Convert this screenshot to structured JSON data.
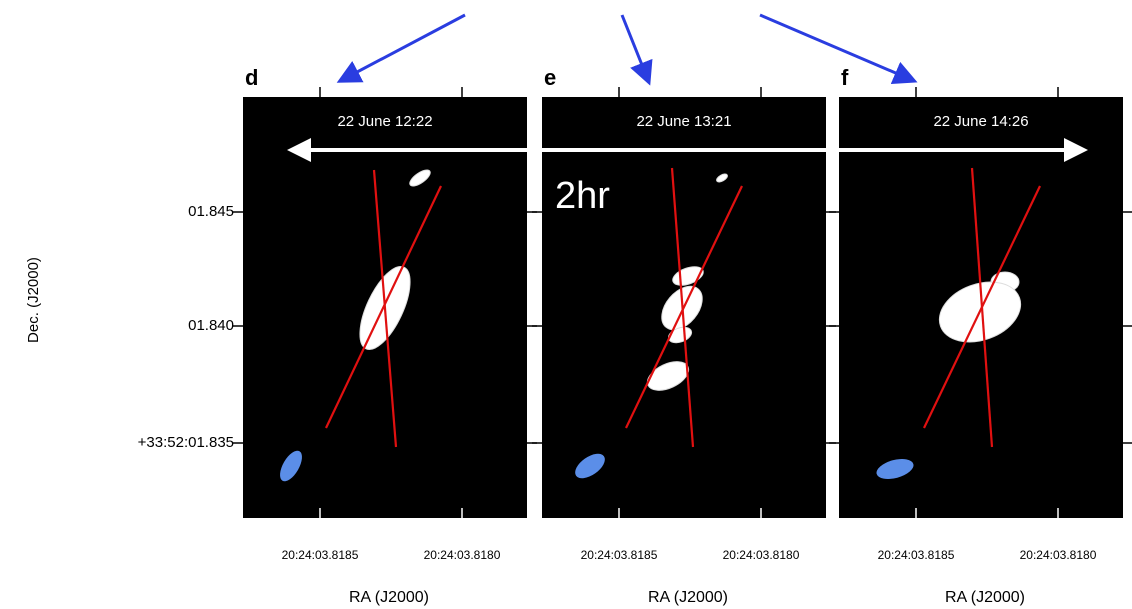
{
  "figure": {
    "panels": [
      {
        "letter": "d",
        "time": "22 June 12:22",
        "xticks": [
          "20:24:03.8185",
          "20:24:03.8180"
        ],
        "xlabel": "RA (J2000)"
      },
      {
        "letter": "e",
        "time": "22 June 13:21",
        "xticks": [
          "20:24:03.8185",
          "20:24:03.8180"
        ],
        "xlabel": "RA (J2000)"
      },
      {
        "letter": "f",
        "time": "22 June 14:26",
        "xticks": [
          "20:24:03.8185",
          "20:24:03.8180"
        ],
        "xlabel": "RA (J2000)"
      }
    ],
    "yticks": [
      "01.845",
      "01.840",
      "+33:52:01.835"
    ],
    "ylabel": "Dec. (J2000)",
    "annotation": "2hr"
  }
}
